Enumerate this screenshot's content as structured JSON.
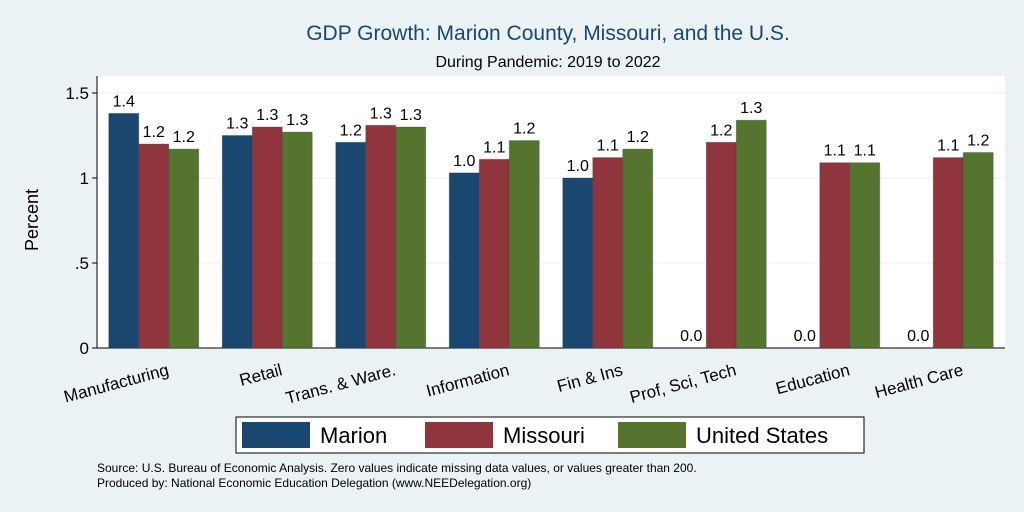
{
  "chart_data": {
    "type": "bar",
    "title": "GDP Growth: Marion County, Missouri, and the U.S.",
    "subtitle": "During Pandemic: 2019 to 2022",
    "ylabel": "Percent",
    "xlabel": "",
    "ylim": [
      0,
      1.6
    ],
    "yticks": [
      {
        "value": 0,
        "label": "0"
      },
      {
        "value": 0.5,
        "label": ".5"
      },
      {
        "value": 1,
        "label": "1"
      },
      {
        "value": 1.5,
        "label": "1.5"
      }
    ],
    "grid": true,
    "legend_position": "bottom",
    "categories": [
      "Manufacturing",
      "Retail",
      "Trans. & Ware.",
      "Information",
      "Fin & Ins",
      "Prof, Sci, Tech",
      "Education",
      "Health Care"
    ],
    "series": [
      {
        "name": "Marion",
        "color": "#1a476f",
        "values": [
          1.38,
          1.25,
          1.21,
          1.03,
          1.0,
          0,
          0,
          0
        ],
        "labels": [
          "1.4",
          "1.3",
          "1.2",
          "1.0",
          "1.0",
          "0.0",
          "0.0",
          "0.0"
        ]
      },
      {
        "name": "Missouri",
        "color": "#90353b",
        "values": [
          1.2,
          1.3,
          1.31,
          1.11,
          1.12,
          1.21,
          1.09,
          1.12
        ],
        "labels": [
          "1.2",
          "1.3",
          "1.3",
          "1.1",
          "1.1",
          "1.2",
          "1.1",
          "1.1"
        ]
      },
      {
        "name": "United States",
        "color": "#55752f",
        "values": [
          1.17,
          1.27,
          1.3,
          1.22,
          1.17,
          1.34,
          1.09,
          1.15
        ],
        "labels": [
          "1.2",
          "1.3",
          "1.3",
          "1.2",
          "1.2",
          "1.3",
          "1.1",
          "1.2"
        ]
      }
    ]
  },
  "notes": {
    "source": "Source: U.S. Bureau of Economic Analysis. Zero values indicate missing data values, or values greater than 200.",
    "produced_by": "Produced by: National Economic Education Delegation (www.NEEDelegation.org)"
  }
}
